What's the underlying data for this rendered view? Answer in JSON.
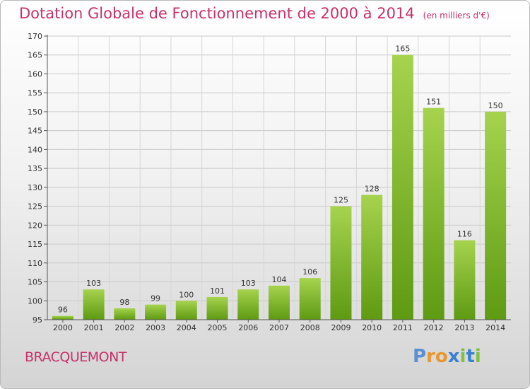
{
  "header": {
    "title": "Dotation Globale de Fonctionnement de 2000 à 2014",
    "unit": "(en milliers d'€)"
  },
  "footer": {
    "commune": "BRACQUEMONT",
    "logo": "Proxiti"
  },
  "colors": {
    "title": "#c8306a",
    "bar_top": "#a6d34e",
    "bar_bottom": "#5e9a12",
    "logo": [
      "#5b8fd1",
      "#e8972c",
      "#e8972c",
      "#3a7fd6",
      "#7fc241",
      "#3a7fd6",
      "#7fc241"
    ]
  },
  "chart_data": {
    "type": "bar",
    "categories": [
      "2000",
      "2001",
      "2002",
      "2003",
      "2004",
      "2005",
      "2006",
      "2007",
      "2008",
      "2009",
      "2010",
      "2011",
      "2012",
      "2013",
      "2014"
    ],
    "values": [
      96,
      103,
      98,
      99,
      100,
      101,
      103,
      104,
      106,
      125,
      128,
      165,
      151,
      116,
      150
    ],
    "ylim": [
      95,
      170
    ],
    "yticks": [
      95,
      100,
      105,
      110,
      115,
      120,
      125,
      130,
      135,
      140,
      145,
      150,
      155,
      160,
      165,
      170
    ],
    "grid": true,
    "xlabel": "",
    "ylabel": ""
  }
}
